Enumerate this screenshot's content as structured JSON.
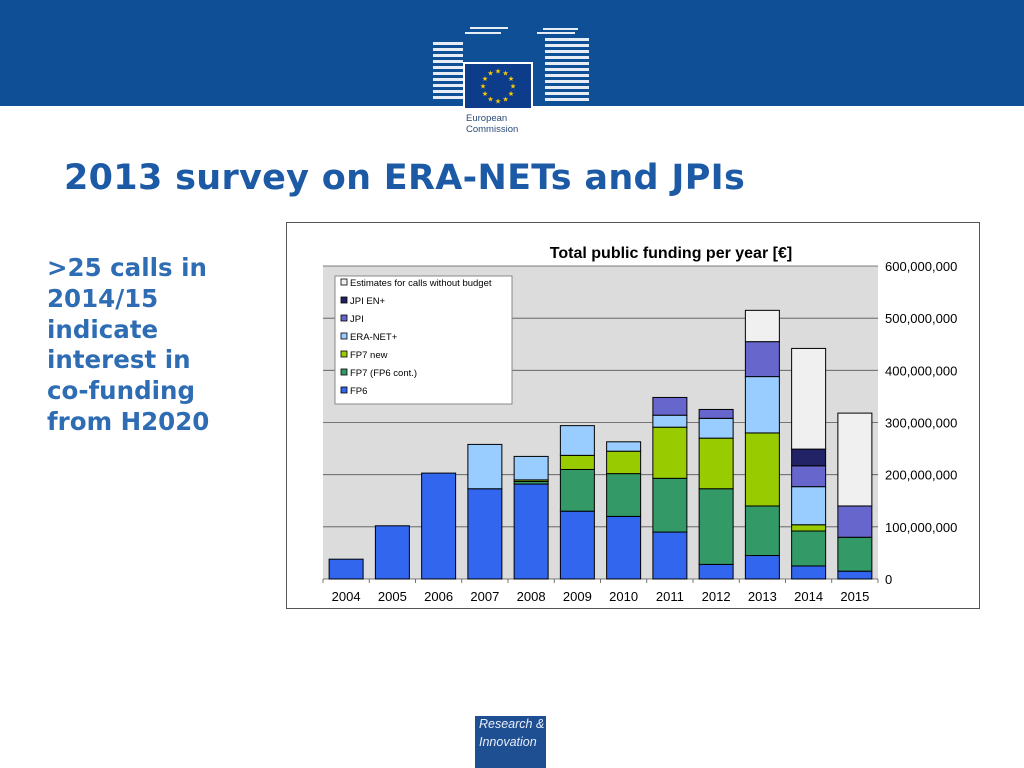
{
  "header": {
    "logo": {
      "line1": "European",
      "line2": "Commission"
    }
  },
  "title": "2013 survey on ERA-NETs and JPIs",
  "sidebar_text": [
    ">25 calls in",
    "2014/15",
    "indicate",
    "interest in",
    "co-funding",
    "from H2020"
  ],
  "badge": {
    "line1": "Research &",
    "line2": "Innovation"
  },
  "colors": {
    "header_blue": "#0e4f96",
    "title_blue": "#1d5aa6",
    "plot_bg": "#dcdcdc"
  },
  "chart_data": {
    "type": "bar",
    "stacked": true,
    "title": "Total public funding per year [€]",
    "categories": [
      "2004",
      "2005",
      "2006",
      "2007",
      "2008",
      "2009",
      "2010",
      "2011",
      "2012",
      "2013",
      "2014",
      "2015"
    ],
    "ylim": [
      0,
      600000000
    ],
    "yticks": [
      0,
      100000000,
      200000000,
      300000000,
      400000000,
      500000000,
      600000000
    ],
    "ytick_labels": [
      "0",
      "100,000,000",
      "200,000,000",
      "300,000,000",
      "400,000,000",
      "500,000,000",
      "600,000,000"
    ],
    "y_axis_side": "right",
    "grid": true,
    "legend_position": "top-left",
    "series": [
      {
        "name": "FP6",
        "color": "#3366ee",
        "values": [
          38000000,
          102000000,
          203000000,
          173000000,
          182000000,
          130000000,
          120000000,
          90000000,
          28000000,
          45000000,
          25000000,
          15000000
        ]
      },
      {
        "name": "FP7 (FP6 cont.)",
        "color": "#339966",
        "values": [
          0,
          0,
          0,
          0,
          5000000,
          80000000,
          82000000,
          103000000,
          145000000,
          95000000,
          67000000,
          65000000
        ]
      },
      {
        "name": "FP7 new",
        "color": "#99cc00",
        "values": [
          0,
          0,
          0,
          0,
          3000000,
          27000000,
          43000000,
          98000000,
          97000000,
          140000000,
          12000000,
          0
        ]
      },
      {
        "name": "ERA-NET+",
        "color": "#99ccff",
        "values": [
          0,
          0,
          0,
          85000000,
          45000000,
          57000000,
          18000000,
          23000000,
          38000000,
          108000000,
          73000000,
          0
        ]
      },
      {
        "name": "JPI",
        "color": "#6666cc",
        "values": [
          0,
          0,
          0,
          0,
          0,
          0,
          0,
          34000000,
          17000000,
          67000000,
          40000000,
          60000000
        ]
      },
      {
        "name": "JPI EN+",
        "color": "#222266",
        "values": [
          0,
          0,
          0,
          0,
          0,
          0,
          0,
          0,
          0,
          0,
          32000000,
          0
        ]
      },
      {
        "name": "Estimates for calls without budget",
        "color": "#f0f0f0",
        "values": [
          0,
          0,
          0,
          0,
          0,
          0,
          0,
          0,
          0,
          60000000,
          193000000,
          178000000
        ]
      }
    ]
  }
}
